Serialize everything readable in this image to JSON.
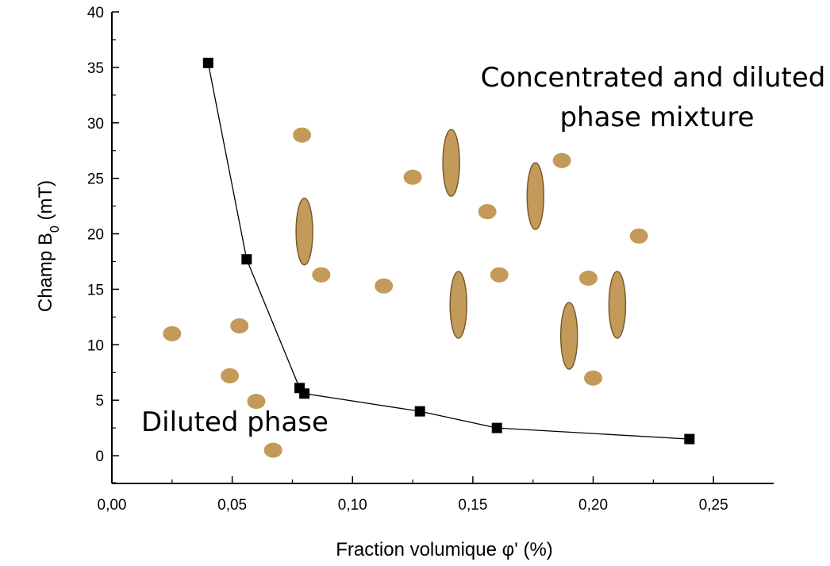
{
  "chart_data": {
    "type": "scatter",
    "xlabel": "Fraction volumique φ' (%)",
    "ylabel_main": "Champ B",
    "ylabel_sub": "0",
    "ylabel_unit": " (mT)",
    "xlim": [
      0.0,
      0.275
    ],
    "ylim": [
      -2.5,
      40
    ],
    "x_ticks": [
      0.0,
      0.05,
      0.1,
      0.15,
      0.2,
      0.25
    ],
    "x_tick_labels": [
      "0,00",
      "0,05",
      "0,10",
      "0,15",
      "0,20",
      "0,25"
    ],
    "y_ticks": [
      0,
      5,
      10,
      15,
      20,
      25,
      30,
      35,
      40
    ],
    "y_tick_labels": [
      "0",
      "5",
      "10",
      "15",
      "20",
      "25",
      "30",
      "35",
      "40"
    ],
    "grid": false,
    "series": [
      {
        "marker": "square",
        "line": true,
        "color": "#000000",
        "x": [
          0.04,
          0.056,
          0.078,
          0.08,
          0.128,
          0.16,
          0.24
        ],
        "y": [
          35.4,
          17.7,
          6.1,
          5.6,
          4.0,
          2.5,
          1.5
        ]
      }
    ],
    "annotations": [
      {
        "id": "diluted",
        "text_lines": [
          "Diluted phase"
        ]
      },
      {
        "id": "mixture",
        "text_lines": [
          "Concentrated and diluted",
          "phase mixture"
        ]
      }
    ],
    "decoration_color": "#C49A5A",
    "decoration_stroke": "#7A5A2A",
    "decorations": [
      {
        "shape": "droplet",
        "x": 0.025,
        "y": 11.0
      },
      {
        "shape": "droplet",
        "x": 0.049,
        "y": 7.2
      },
      {
        "shape": "droplet",
        "x": 0.053,
        "y": 11.7
      },
      {
        "shape": "droplet",
        "x": 0.06,
        "y": 4.9
      },
      {
        "shape": "droplet",
        "x": 0.067,
        "y": 0.5
      },
      {
        "shape": "droplet",
        "x": 0.079,
        "y": 28.9
      },
      {
        "shape": "droplet",
        "x": 0.087,
        "y": 16.3
      },
      {
        "shape": "droplet",
        "x": 0.113,
        "y": 15.3
      },
      {
        "shape": "droplet",
        "x": 0.125,
        "y": 25.1
      },
      {
        "shape": "droplet",
        "x": 0.156,
        "y": 22.0
      },
      {
        "shape": "droplet",
        "x": 0.161,
        "y": 16.3
      },
      {
        "shape": "droplet",
        "x": 0.187,
        "y": 26.6
      },
      {
        "shape": "droplet",
        "x": 0.198,
        "y": 16.0
      },
      {
        "shape": "droplet",
        "x": 0.2,
        "y": 7.0
      },
      {
        "shape": "droplet",
        "x": 0.219,
        "y": 19.8
      },
      {
        "shape": "elongated",
        "x": 0.08,
        "y": 20.2
      },
      {
        "shape": "elongated",
        "x": 0.141,
        "y": 26.4
      },
      {
        "shape": "elongated",
        "x": 0.144,
        "y": 13.6
      },
      {
        "shape": "elongated",
        "x": 0.176,
        "y": 23.4
      },
      {
        "shape": "elongated",
        "x": 0.19,
        "y": 10.8
      },
      {
        "shape": "elongated",
        "x": 0.21,
        "y": 13.6
      }
    ]
  }
}
